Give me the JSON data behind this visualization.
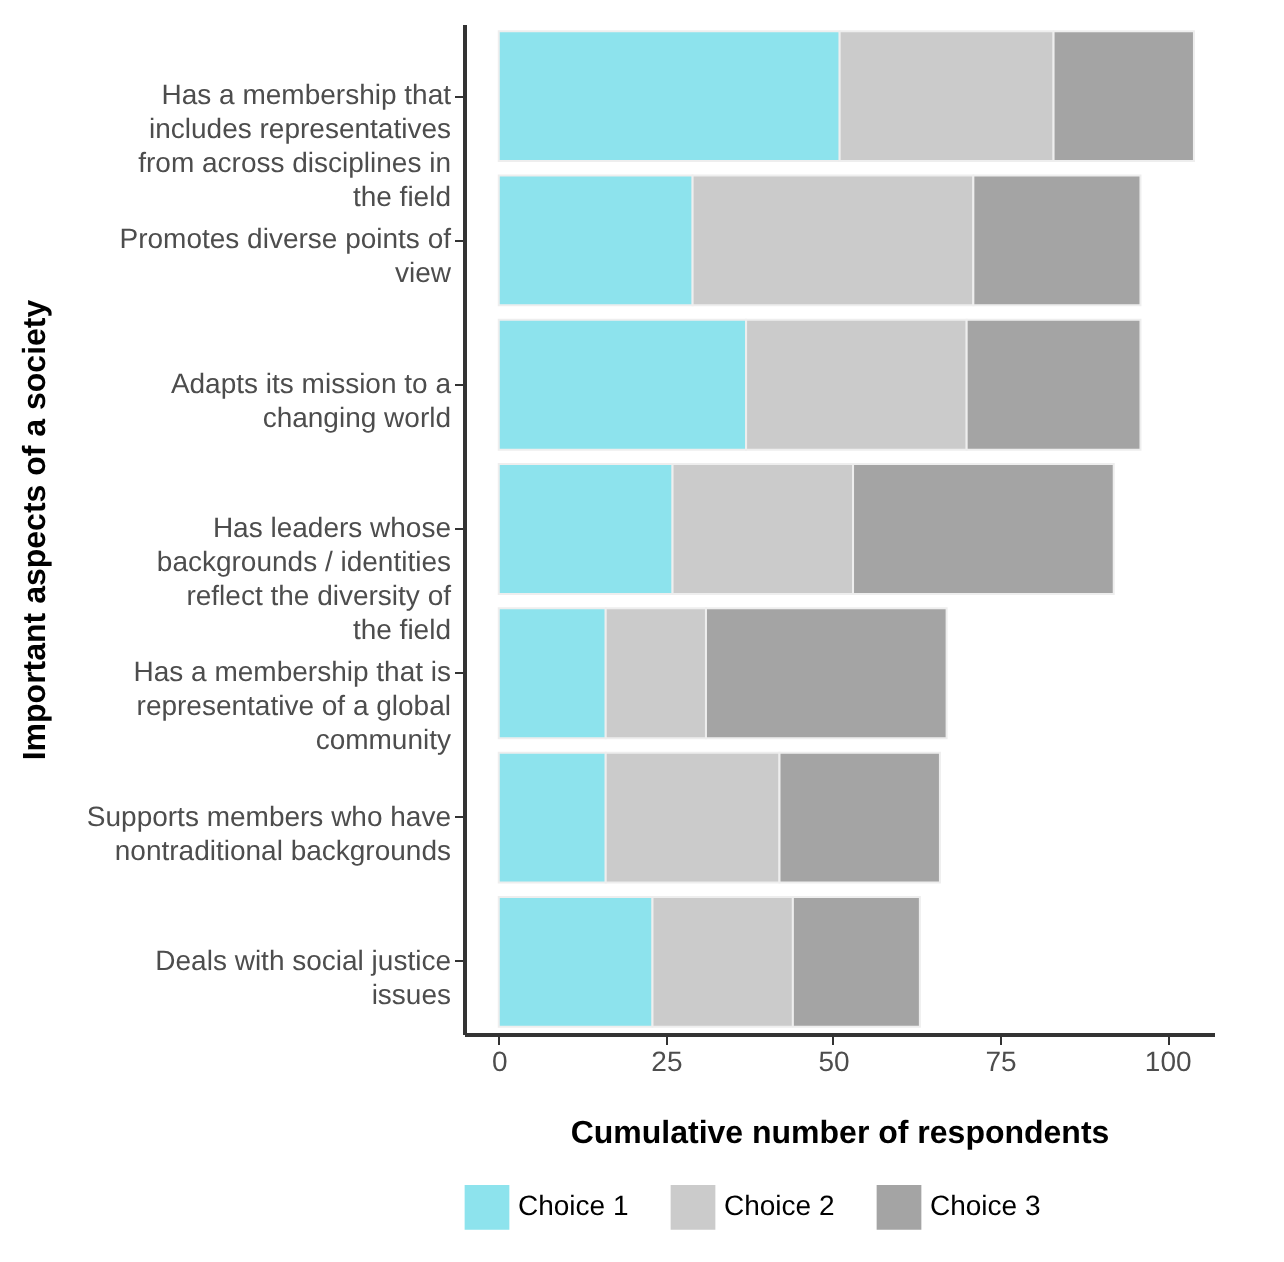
{
  "chart_data": {
    "type": "bar",
    "orientation": "horizontal",
    "stacked": true,
    "xlabel": "Cumulative number of respondents",
    "ylabel": "Important aspects of a society",
    "categories": [
      "Has a membership that includes representatives from across disciplines in the field",
      "Promotes diverse points of view",
      "Adapts its mission to a changing world",
      "Has leaders whose backgrounds / identities reflect the diversity of the field",
      "Has a membership that is representative of a global community",
      "Supports members who have nontraditional backgrounds",
      "Deals with social justice issues"
    ],
    "series": [
      {
        "name": "Choice 1",
        "color": "#8de3ed",
        "values": [
          51,
          29,
          37,
          26,
          16,
          16,
          23
        ]
      },
      {
        "name": "Choice 2",
        "color": "#cbcbcb",
        "values": [
          32,
          42,
          33,
          27,
          15,
          26,
          21
        ]
      },
      {
        "name": "Choice 3",
        "color": "#a4a4a4",
        "values": [
          21,
          25,
          26,
          39,
          36,
          24,
          19
        ]
      }
    ],
    "xlim": [
      -5.2,
      107
    ],
    "xticks": [
      0,
      25,
      50,
      75,
      100
    ],
    "legend": "bottom",
    "grid": false
  }
}
